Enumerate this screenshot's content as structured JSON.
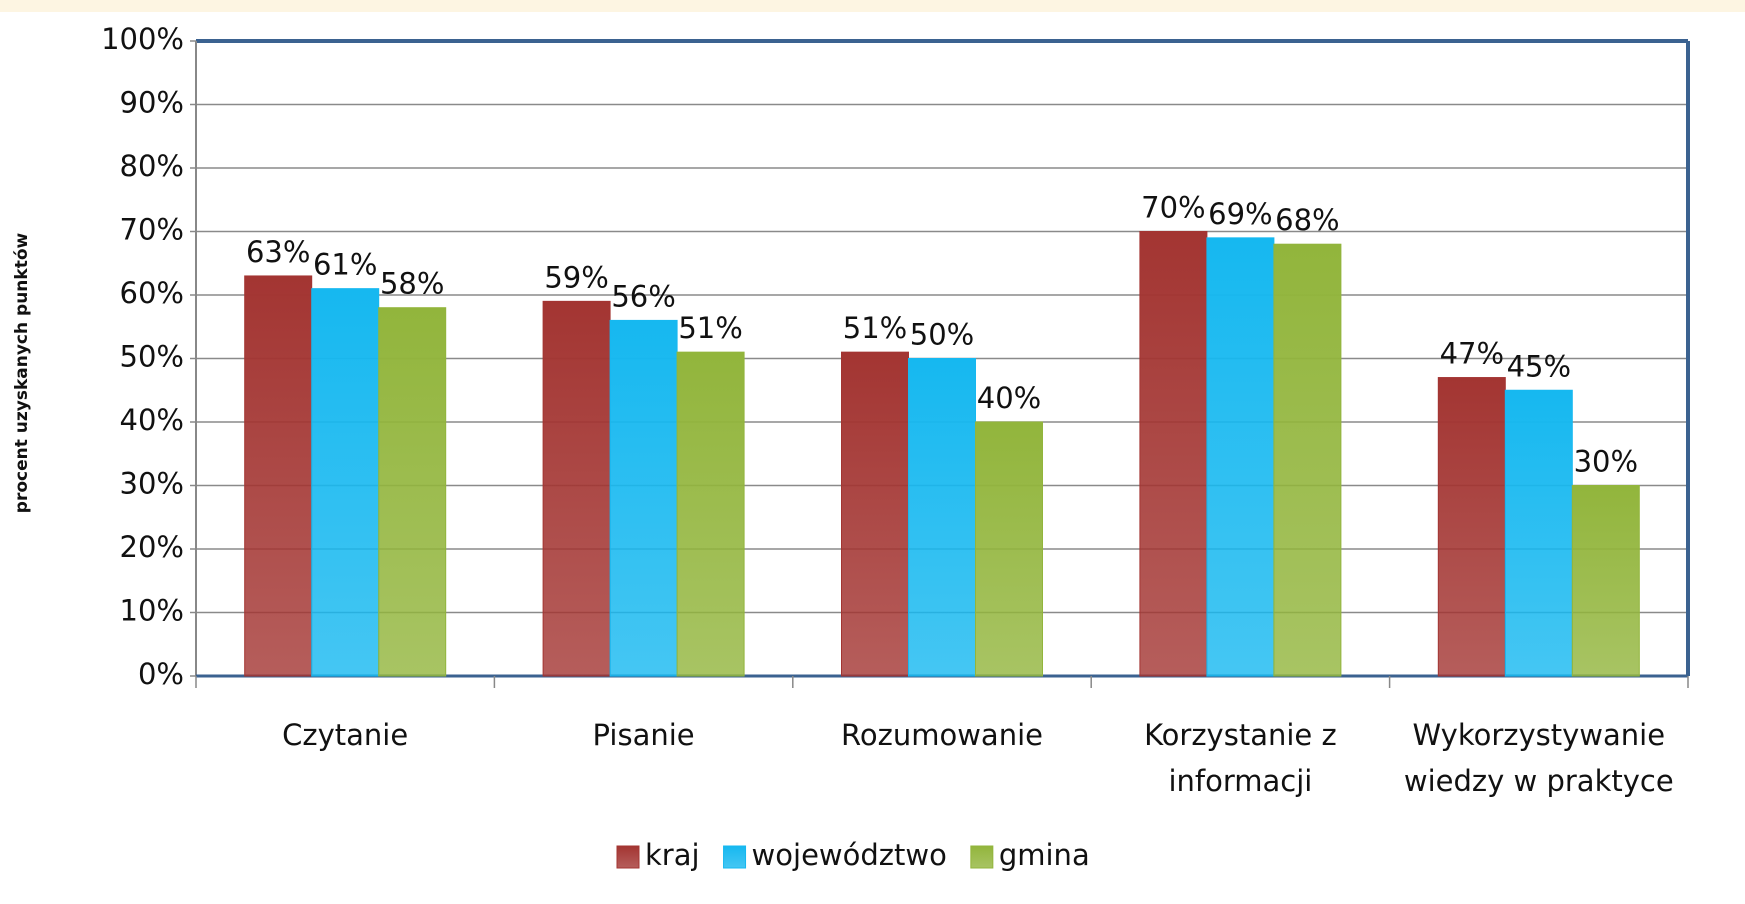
{
  "chart_data": {
    "type": "bar",
    "y_label": "procent uzyskanych punktów",
    "categories": [
      "Czytanie",
      "Pisanie",
      "Rozumowanie",
      "Korzystanie z informacji",
      "Wykorzystywanie wiedzy w praktyce"
    ],
    "series": [
      {
        "name": "kraj",
        "color": "#a33532",
        "values": [
          63,
          59,
          51,
          70,
          47
        ],
        "value_labels": [
          "63%",
          "59%",
          "51%",
          "70%",
          "47%"
        ]
      },
      {
        "name": "województwo",
        "color": "#16b8f0",
        "values": [
          61,
          56,
          50,
          69,
          45
        ],
        "value_labels": [
          "61%",
          "56%",
          "50%",
          "69%",
          "45%"
        ]
      },
      {
        "name": "gmina",
        "color": "#92b53c",
        "values": [
          58,
          51,
          40,
          68,
          30
        ],
        "value_labels": [
          "58%",
          "51%",
          "40%",
          "68%",
          "30%"
        ]
      }
    ],
    "ylim": [
      0,
      100
    ],
    "yticks": [
      {
        "value": 0,
        "label": "0%"
      },
      {
        "value": 10,
        "label": "10%"
      },
      {
        "value": 20,
        "label": "20%"
      },
      {
        "value": 30,
        "label": "30%"
      },
      {
        "value": 40,
        "label": "40%"
      },
      {
        "value": 50,
        "label": "50%"
      },
      {
        "value": 60,
        "label": "60%"
      },
      {
        "value": 70,
        "label": "70%"
      },
      {
        "value": 80,
        "label": "80%"
      },
      {
        "value": 90,
        "label": "90%"
      },
      {
        "value": 100,
        "label": "100%"
      }
    ],
    "grid": true,
    "legend": "bottom"
  }
}
